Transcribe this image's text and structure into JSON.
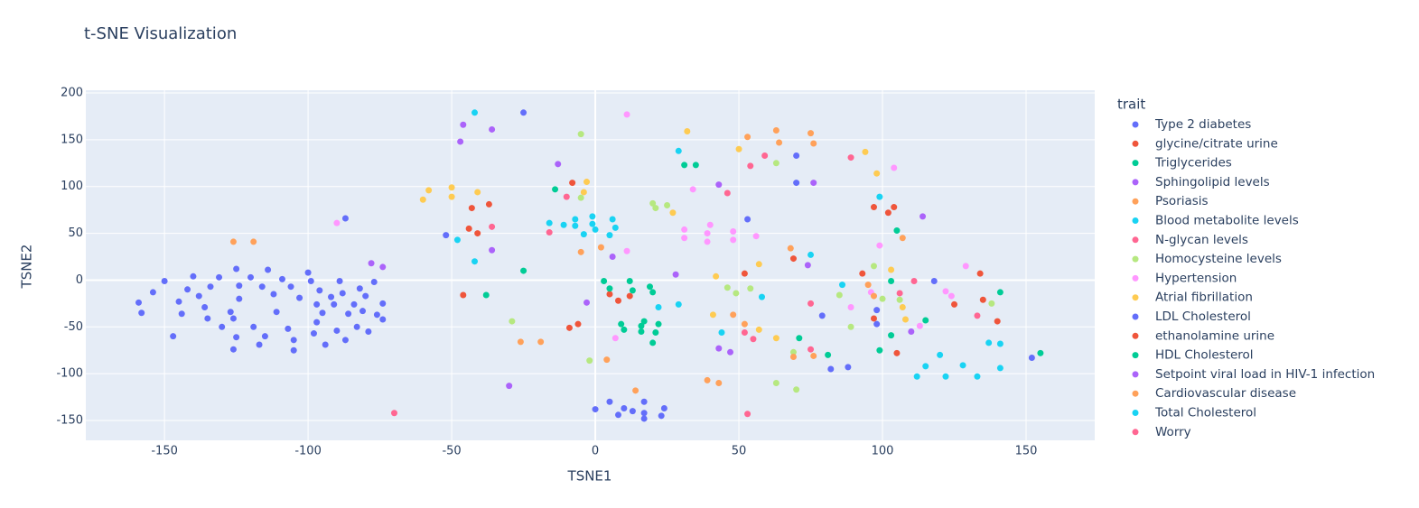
{
  "chart_data": {
    "type": "scatter",
    "title": "t-SNE Visualization",
    "x_label": "TSNE1",
    "y_label": "TSNE2",
    "legend_title": "trait",
    "legend_position": "right",
    "grid": true,
    "xlim": [
      -177.4,
      173.9
    ],
    "ylim": [
      -171.2,
      202.9
    ],
    "xticks": [
      -150,
      -100,
      -50,
      0,
      50,
      100,
      150
    ],
    "yticks": [
      -150,
      -100,
      -50,
      0,
      50,
      100,
      150,
      200
    ],
    "series": [
      {
        "name": "Type 2 diabetes",
        "color": "#636efa",
        "x": [
          -159,
          -158,
          -154,
          -150,
          -147,
          -145,
          -144,
          -142,
          -140,
          -138,
          -136,
          -135,
          -134,
          -131,
          -130,
          -127,
          -126,
          -126,
          -125,
          -125,
          -124,
          -124,
          -120,
          -119,
          -117,
          -116,
          -115,
          -114,
          -112,
          -111,
          -109,
          -107,
          -106,
          -105,
          -105,
          -103,
          -100,
          -99,
          -98,
          -97,
          -97,
          -96,
          -95,
          -94,
          -92,
          -91,
          -90,
          -89,
          -88,
          -87,
          -86,
          -84,
          -83,
          -82,
          -81,
          -80,
          -79,
          -77,
          -76,
          -74,
          -74,
          -87
        ],
        "y": [
          -24,
          -35,
          -13,
          -1,
          -60,
          -23,
          -36,
          -10,
          4,
          -17,
          -29,
          -41,
          -7,
          3,
          -50,
          -34,
          -41,
          -74,
          12,
          -61,
          -6,
          -20,
          3,
          -50,
          -69,
          -7,
          -60,
          11,
          -15,
          -34,
          1,
          -52,
          -7,
          -64,
          -75,
          -19,
          8,
          -1,
          -57,
          -26,
          -45,
          -11,
          -35,
          -69,
          -18,
          -26,
          -54,
          -1,
          -14,
          -64,
          -36,
          -26,
          -50,
          -9,
          -33,
          -17,
          -55,
          -2,
          -37,
          -42,
          -25,
          66
        ]
      },
      {
        "name": "glycine/citrate urine",
        "color": "#EF553B",
        "x": [
          -44,
          -43,
          -41,
          -37,
          -46,
          -8,
          -9,
          -6,
          5,
          8,
          12,
          52
        ],
        "y": [
          55,
          77,
          50,
          81,
          -16,
          104,
          -51,
          -47,
          -15,
          -22,
          -17,
          7
        ]
      },
      {
        "name": "Triglycerides",
        "color": "#00cc96",
        "x": [
          -14,
          -25,
          -38,
          3,
          5,
          9,
          10,
          12,
          13,
          16,
          16,
          17,
          19,
          20,
          20,
          21,
          22,
          31,
          35,
          71
        ],
        "y": [
          97,
          10,
          -16,
          -1,
          -9,
          -47,
          -53,
          -1,
          -11,
          -55,
          -49,
          -44,
          -7,
          -13,
          -67,
          -56,
          -47,
          123,
          123,
          -62
        ]
      },
      {
        "name": "Sphingolipid levels",
        "color": "#ab63fa",
        "x": [
          -46,
          -47,
          -36,
          -36,
          -13,
          6,
          -3,
          28,
          43,
          43,
          47,
          76
        ],
        "y": [
          166,
          148,
          161,
          32,
          124,
          25,
          -24,
          6,
          102,
          -73,
          -77,
          104
        ]
      },
      {
        "name": "Psoriasis",
        "color": "#FFA15A",
        "x": [
          -126,
          -119,
          2,
          -5,
          -26,
          -19,
          4,
          14,
          39,
          43,
          53,
          63
        ],
        "y": [
          41,
          41,
          35,
          30,
          -66,
          -66,
          -85,
          -118,
          -107,
          -110,
          153,
          160
        ]
      },
      {
        "name": "Blood metabolite levels",
        "color": "#19d3f3",
        "x": [
          -42,
          -42,
          -48,
          -16,
          -11,
          -7,
          -7,
          -4,
          -1,
          -1,
          0,
          5,
          6,
          7,
          22
        ],
        "y": [
          179,
          20,
          43,
          61,
          59,
          65,
          58,
          49,
          68,
          60,
          54,
          48,
          65,
          56,
          -29
        ]
      },
      {
        "name": "N-glycan levels",
        "color": "#FF6692",
        "x": [
          -16,
          -10,
          -36,
          46,
          54,
          59,
          52,
          55
        ],
        "y": [
          51,
          89,
          57,
          93,
          122,
          133,
          -56,
          -63
        ]
      },
      {
        "name": "Homocysteine levels",
        "color": "#B6E880",
        "x": [
          -5,
          -5,
          20,
          21,
          25,
          -29,
          -2,
          46,
          49,
          54,
          63,
          63,
          69,
          70,
          85,
          89,
          97,
          100,
          106,
          138
        ],
        "y": [
          156,
          88,
          82,
          77,
          80,
          -44,
          -86,
          -8,
          -14,
          -9,
          125,
          -110,
          -77,
          -117,
          -16,
          -50,
          15,
          -20,
          -21,
          -25
        ]
      },
      {
        "name": "Hypertension",
        "color": "#FF97FF",
        "x": [
          11,
          -90,
          11,
          7,
          31,
          31,
          39,
          40,
          39,
          48,
          48,
          56,
          34,
          99,
          104,
          89,
          96,
          122,
          124,
          113,
          129
        ],
        "y": [
          177,
          61,
          31,
          -62,
          54,
          45,
          50,
          59,
          41,
          52,
          43,
          47,
          97,
          37,
          120,
          -29,
          -13,
          -12,
          -17,
          -49,
          15
        ]
      },
      {
        "name": "Atrial fibrillation",
        "color": "#FECB52",
        "x": [
          -60,
          -58,
          -50,
          -50,
          -41,
          -4,
          -3,
          32,
          50,
          57,
          63,
          27,
          42,
          98,
          94,
          103,
          107,
          108,
          57,
          41
        ],
        "y": [
          86,
          96,
          99,
          89,
          94,
          94,
          105,
          159,
          140,
          17,
          -62,
          72,
          4,
          114,
          137,
          11,
          -29,
          -42,
          -53,
          -37
        ]
      },
      {
        "name": "LDL Cholesterol",
        "color": "#636efa",
        "x": [
          0,
          5,
          8,
          10,
          13,
          17,
          17,
          17,
          23,
          24,
          -52,
          -25,
          53,
          70,
          70,
          118,
          152,
          82,
          88,
          79,
          98,
          98
        ],
        "y": [
          -138,
          -130,
          -144,
          -137,
          -140,
          -148,
          -130,
          -142,
          -145,
          -137,
          48,
          179,
          65,
          133,
          104,
          -1,
          -83,
          -95,
          -93,
          -38,
          -32,
          -47
        ]
      },
      {
        "name": "ethanolamine urine",
        "color": "#EF553B",
        "x": [
          69,
          93,
          97,
          102,
          104,
          97,
          105,
          125,
          134,
          135,
          140
        ],
        "y": [
          23,
          7,
          78,
          72,
          78,
          -41,
          -78,
          -26,
          7,
          -21,
          -44
        ]
      },
      {
        "name": "HDL Cholesterol",
        "color": "#00cc96",
        "x": [
          81,
          99,
          103,
          103,
          105,
          115,
          141,
          155
        ],
        "y": [
          -80,
          -75,
          -59,
          -1,
          53,
          -43,
          -13,
          -78
        ]
      },
      {
        "name": "Setpoint viral load in HIV-1 infection",
        "color": "#ab63fa",
        "x": [
          74,
          114,
          110,
          -30,
          -78,
          -74
        ],
        "y": [
          16,
          68,
          -55,
          -113,
          18,
          14
        ]
      },
      {
        "name": "Cardiovascular disease",
        "color": "#FFA15A",
        "x": [
          64,
          75,
          76,
          68,
          69,
          76,
          107,
          95,
          97,
          48,
          52
        ],
        "y": [
          147,
          157,
          146,
          34,
          -82,
          -81,
          45,
          -5,
          -17,
          -37,
          -47
        ]
      },
      {
        "name": "Total Cholesterol",
        "color": "#19d3f3",
        "x": [
          29,
          29,
          44,
          58,
          75,
          86,
          99,
          115,
          120,
          122,
          128,
          133,
          137,
          141,
          141,
          112
        ],
        "y": [
          -26,
          138,
          -56,
          -18,
          27,
          -5,
          89,
          -92,
          -80,
          -103,
          -91,
          -103,
          -67,
          -68,
          -94,
          -103
        ]
      },
      {
        "name": "Worry",
        "color": "#FF6692",
        "x": [
          -70,
          53,
          75,
          75,
          89,
          111,
          133,
          106
        ],
        "y": [
          -142,
          -143,
          -25,
          -74,
          131,
          -1,
          -38,
          -14
        ]
      }
    ]
  }
}
